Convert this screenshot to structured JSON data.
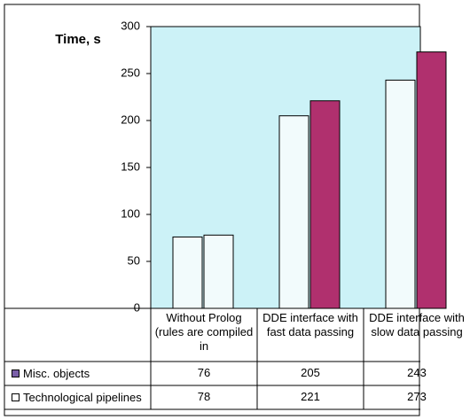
{
  "chart_data": {
    "type": "bar",
    "y_label": "Time, s",
    "categories": [
      "Without Prolog (rules are compiled in",
      "DDE interface with fast data passing",
      "DDE interface with slow data passing"
    ],
    "series": [
      {
        "name": "Misc. objects",
        "color": "#7a5fa8",
        "bar_colors": [
          "#f2fbfc",
          "#f2fbfc",
          "#f2fbfc"
        ],
        "values": [
          76,
          205,
          243
        ]
      },
      {
        "name": "Technological pipelines",
        "color": "#ffffff",
        "bar_colors": [
          "#f2fbfc",
          "#b0306e",
          "#b0306e"
        ],
        "values": [
          78,
          221,
          273
        ]
      }
    ],
    "ylim": [
      0,
      300
    ],
    "yticks": [
      0,
      50,
      100,
      150,
      200,
      250,
      300
    ],
    "plot_background": "#ccf2f7"
  }
}
